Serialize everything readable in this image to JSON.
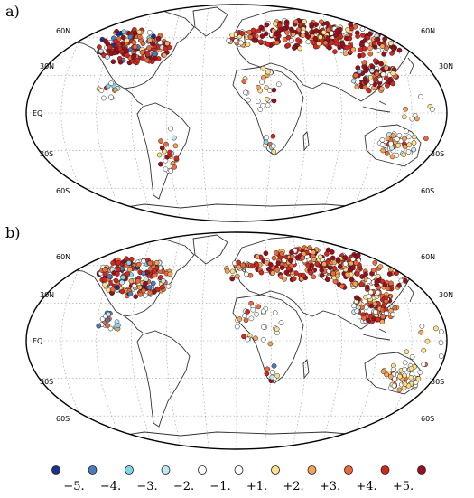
{
  "panels": [
    {
      "label": "a)",
      "lat_labels": {
        "n60": "60N",
        "n30": "30N",
        "eq": "EQ",
        "s30": "30S",
        "s60": "60S"
      }
    },
    {
      "label": "b)",
      "lat_labels": {
        "n60": "60N",
        "n30": "30N",
        "eq": "EQ",
        "s30": "30S",
        "s60": "60S"
      }
    }
  ],
  "legend": {
    "items": [
      {
        "label": "−5.",
        "color": "#1f2f8c"
      },
      {
        "label": "−4.",
        "color": "#4b7bc0"
      },
      {
        "label": "−3.",
        "color": "#7fd6ee"
      },
      {
        "label": "−2.",
        "color": "#bfe8f4"
      },
      {
        "label": "−1.",
        "color": "#ffffff"
      },
      {
        "label": "+1.",
        "color": "#ffffff"
      },
      {
        "label": "+2.",
        "color": "#fde08a"
      },
      {
        "label": "+3.",
        "color": "#f5a35a"
      },
      {
        "label": "+4.",
        "color": "#ec6a3a"
      },
      {
        "label": "+5.",
        "color": "#d4261f"
      },
      {
        "label": "",
        "color": "#9b0e1a"
      }
    ]
  },
  "colors": {
    "graticule": "#9a9a9a",
    "coast": "#333333",
    "marker_edge": "#222222"
  }
}
